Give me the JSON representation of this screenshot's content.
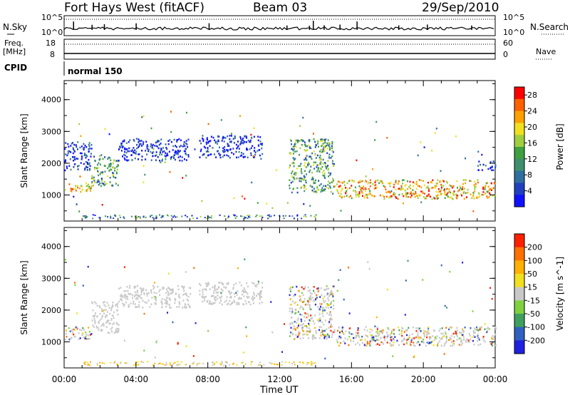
{
  "header": {
    "radar": "Fort Hays West (fitACF)",
    "beam": "Beam 03",
    "date": "29/Sep/2010"
  },
  "panel_labels": {
    "nsky": "N.Sky",
    "nsearch": "N.Search",
    "freq": "Freq.",
    "freq_unit": "[MHz]",
    "nave": "Nave",
    "cpid": "CPID",
    "cpid_text": "normal 150"
  },
  "noise_axis": {
    "left_top": "10^5",
    "left_bottom": "10^0",
    "right_top": "10^5",
    "right_bottom": "10^0"
  },
  "freq_axis": {
    "left_top": "18",
    "left_bottom": "8",
    "right_top": "60",
    "right_bottom": "0"
  },
  "colors": {
    "power_scale": [
      "#1010ff",
      "#2040c0",
      "#2f6f9f",
      "#3f8f6f",
      "#3fa03f",
      "#9fcf3f",
      "#f0e020",
      "#ffa000",
      "#ff6000",
      "#ff0000"
    ],
    "velocity_scale": [
      "#2020e0",
      "#3060c0",
      "#3f9f5f",
      "#80d040",
      "#c8c8c8",
      "#f0e020",
      "#ffb000",
      "#ff7000",
      "#ff2000"
    ]
  },
  "chart_data": [
    {
      "type": "heatmap",
      "title": "",
      "ylabel": "Slant Range [km]",
      "xlabel": "",
      "ylim": [
        180,
        4600
      ],
      "xlim": [
        "00:00",
        "24:00"
      ],
      "yticks": [
        "1000",
        "2000",
        "3000",
        "4000"
      ],
      "xticks": [
        "00:00",
        "04:00",
        "08:00",
        "12:00",
        "16:00",
        "20:00",
        "00:00"
      ],
      "colorbar": {
        "label": "Power [dB]",
        "ticks": [
          "4",
          "8",
          "12",
          "16",
          "20",
          "24",
          "28"
        ],
        "range": [
          0,
          30
        ]
      },
      "scatter_bands": [
        {
          "t_start": 0.0,
          "t_end": 1.5,
          "r_start": 1100,
          "r_end": 1400,
          "level": "high"
        },
        {
          "t_start": 1.5,
          "t_end": 3.0,
          "r_start": 1300,
          "r_end": 2300,
          "level": "mid"
        },
        {
          "t_start": 0.0,
          "t_end": 1.5,
          "r_start": 1800,
          "r_end": 2700,
          "level": "low"
        },
        {
          "t_start": 3.0,
          "t_end": 7.0,
          "r_start": 2100,
          "r_end": 2800,
          "level": "low"
        },
        {
          "t_start": 7.5,
          "t_end": 11.0,
          "r_start": 2200,
          "r_end": 2900,
          "level": "low"
        },
        {
          "t_start": 12.5,
          "t_end": 15.0,
          "r_start": 1100,
          "r_end": 2800,
          "level": "mid"
        },
        {
          "t_start": 15.0,
          "t_end": 24.0,
          "r_start": 900,
          "r_end": 1500,
          "level": "high"
        },
        {
          "t_start": 23.0,
          "t_end": 24.0,
          "r_start": 1800,
          "r_end": 2100,
          "level": "low"
        }
      ]
    },
    {
      "type": "heatmap",
      "title": "",
      "ylabel": "Slant Range [km]",
      "xlabel": "Time UT",
      "ylim": [
        180,
        4600
      ],
      "xlim": [
        "00:00",
        "24:00"
      ],
      "yticks": [
        "1000",
        "2000",
        "3000",
        "4000"
      ],
      "xticks": [
        "00:00",
        "04:00",
        "08:00",
        "12:00",
        "16:00",
        "20:00",
        "00:00"
      ],
      "colorbar": {
        "label": "Velocity [m s^-1]",
        "ticks": [
          "200",
          "100",
          "50",
          "15",
          "-15",
          "-50",
          "-100",
          "-200"
        ],
        "range": [
          -250,
          250
        ]
      },
      "scatter_bands": [
        {
          "t_start": 0.0,
          "t_end": 1.5,
          "r_start": 1100,
          "r_end": 1500,
          "level": "mixed"
        },
        {
          "t_start": 1.5,
          "t_end": 3.0,
          "r_start": 1300,
          "r_end": 2300,
          "level": "ground"
        },
        {
          "t_start": 3.0,
          "t_end": 7.0,
          "r_start": 2100,
          "r_end": 2800,
          "level": "ground"
        },
        {
          "t_start": 7.5,
          "t_end": 11.0,
          "r_start": 2200,
          "r_end": 2900,
          "level": "ground"
        },
        {
          "t_start": 12.5,
          "t_end": 15.0,
          "r_start": 1100,
          "r_end": 2800,
          "level": "mixed"
        },
        {
          "t_start": 15.0,
          "t_end": 24.0,
          "r_start": 900,
          "r_end": 1500,
          "level": "mixed"
        }
      ]
    }
  ]
}
